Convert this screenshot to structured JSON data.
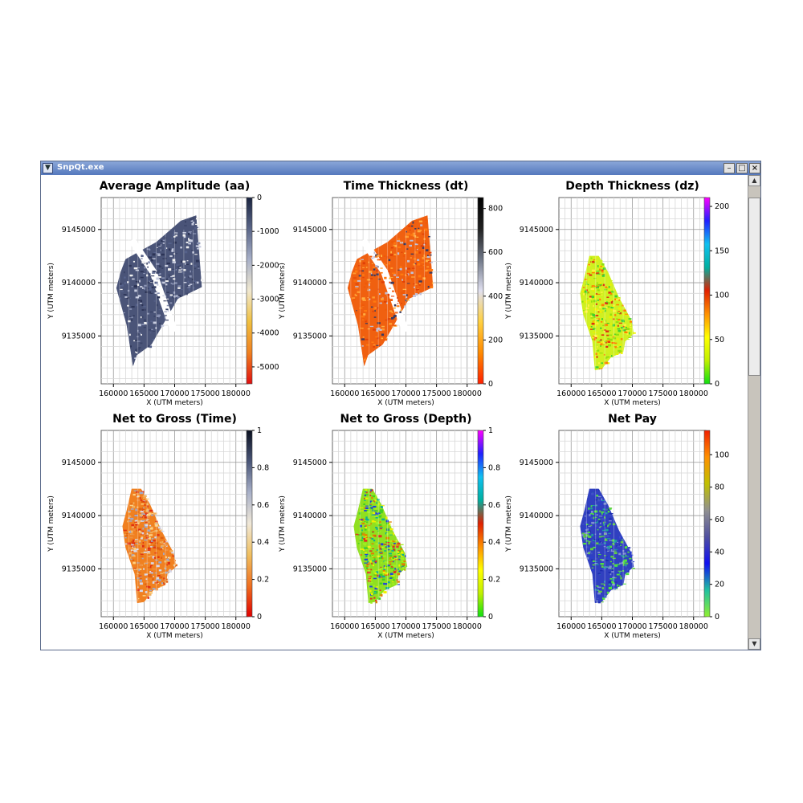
{
  "window": {
    "title": "SnpQt.exe",
    "sys_icon": "chevron-down-icon",
    "controls": [
      "minimize-icon",
      "maximize-icon",
      "close-icon"
    ]
  },
  "scrollbar": {
    "up_icon": "arrow-up-icon",
    "down_icon": "arrow-down-icon",
    "thumb_fraction": 0.4
  },
  "axes": {
    "xlabel": "X (UTM meters)",
    "ylabel": "Y (UTM meters)",
    "xticks": [
      "160000",
      "165000",
      "170000",
      "175000",
      "180000"
    ],
    "yticks": [
      "9145000",
      "9140000",
      "9135000"
    ]
  },
  "chart_data": [
    {
      "type": "heatmap",
      "title": "Average Amplitude (aa)",
      "xlabel": "X (UTM meters)",
      "ylabel": "Y (UTM meters)",
      "xlim": [
        158000,
        182000
      ],
      "ylim": [
        9130500,
        9148000
      ],
      "grid": true,
      "colorbar": {
        "ticks": [
          "0",
          "-1000",
          "-2000",
          "-3000",
          "-4000",
          "-5000"
        ],
        "range": [
          -5500,
          0
        ],
        "colors": [
          "#e01010",
          "#f08020",
          "#f0c040",
          "#f0e8d0",
          "#a8b0c8",
          "#5a6688",
          "#1a2440"
        ]
      }
    },
    {
      "type": "heatmap",
      "title": "Time Thickness (dt)",
      "xlabel": "X (UTM meters)",
      "ylabel": "Y (UTM meters)",
      "xlim": [
        158000,
        182000
      ],
      "ylim": [
        9130500,
        9148000
      ],
      "grid": true,
      "colorbar": {
        "ticks": [
          "800",
          "600",
          "400",
          "200",
          "0"
        ],
        "range": [
          0,
          850
        ],
        "colors": [
          "#ff2000",
          "#ff8a00",
          "#ffd040",
          "#e0e0f0",
          "#707888",
          "#202020",
          "#000000"
        ]
      }
    },
    {
      "type": "heatmap",
      "title": "Depth Thickness (dz)",
      "xlabel": "X (UTM meters)",
      "ylabel": "Y (UTM meters)",
      "xlim": [
        158000,
        182000
      ],
      "ylim": [
        9130500,
        9148000
      ],
      "grid": true,
      "colorbar": {
        "ticks": [
          "200",
          "150",
          "100",
          "50",
          "0"
        ],
        "range": [
          0,
          210
        ],
        "colors": [
          "#10e010",
          "#c0f000",
          "#ffff00",
          "#ff9000",
          "#e02000",
          "#00b0a0",
          "#10c0f0",
          "#2020ff",
          "#ff00ff"
        ]
      }
    },
    {
      "type": "heatmap",
      "title": "Net to Gross (Time)",
      "xlabel": "X (UTM meters)",
      "ylabel": "Y (UTM meters)",
      "xlim": [
        158000,
        182000
      ],
      "ylim": [
        9130500,
        9148000
      ],
      "grid": true,
      "colorbar": {
        "ticks": [
          "1",
          "0.8",
          "0.6",
          "0.4",
          "0.2",
          "0"
        ],
        "range": [
          0,
          1
        ],
        "colors": [
          "#e00000",
          "#f07020",
          "#f0c060",
          "#f0e8d8",
          "#a8b0c8",
          "#4a5678",
          "#0a1020"
        ]
      }
    },
    {
      "type": "heatmap",
      "title": "Net to Gross (Depth)",
      "xlabel": "X (UTM meters)",
      "ylabel": "Y (UTM meters)",
      "xlim": [
        158000,
        182000
      ],
      "ylim": [
        9130500,
        9148000
      ],
      "grid": true,
      "colorbar": {
        "ticks": [
          "1",
          "0.8",
          "0.6",
          "0.4",
          "0.2",
          "0"
        ],
        "range": [
          0,
          1
        ],
        "colors": [
          "#10e010",
          "#c0f000",
          "#ffff00",
          "#ff9000",
          "#e02000",
          "#00b0a0",
          "#10c0f0",
          "#2020ff",
          "#ff00ff"
        ]
      }
    },
    {
      "type": "heatmap",
      "title": "Net Pay",
      "xlabel": "X (UTM meters)",
      "ylabel": "Y (UTM meters)",
      "xlim": [
        158000,
        182000
      ],
      "ylim": [
        9130500,
        9148000
      ],
      "grid": true,
      "colorbar": {
        "ticks": [
          "100",
          "80",
          "60",
          "40",
          "20",
          "0"
        ],
        "range": [
          0,
          115
        ],
        "colors": [
          "#90f030",
          "#20c0a0",
          "#1010f0",
          "#5050a0",
          "#909090",
          "#c0c000",
          "#ff9000",
          "#f02000"
        ]
      }
    }
  ]
}
